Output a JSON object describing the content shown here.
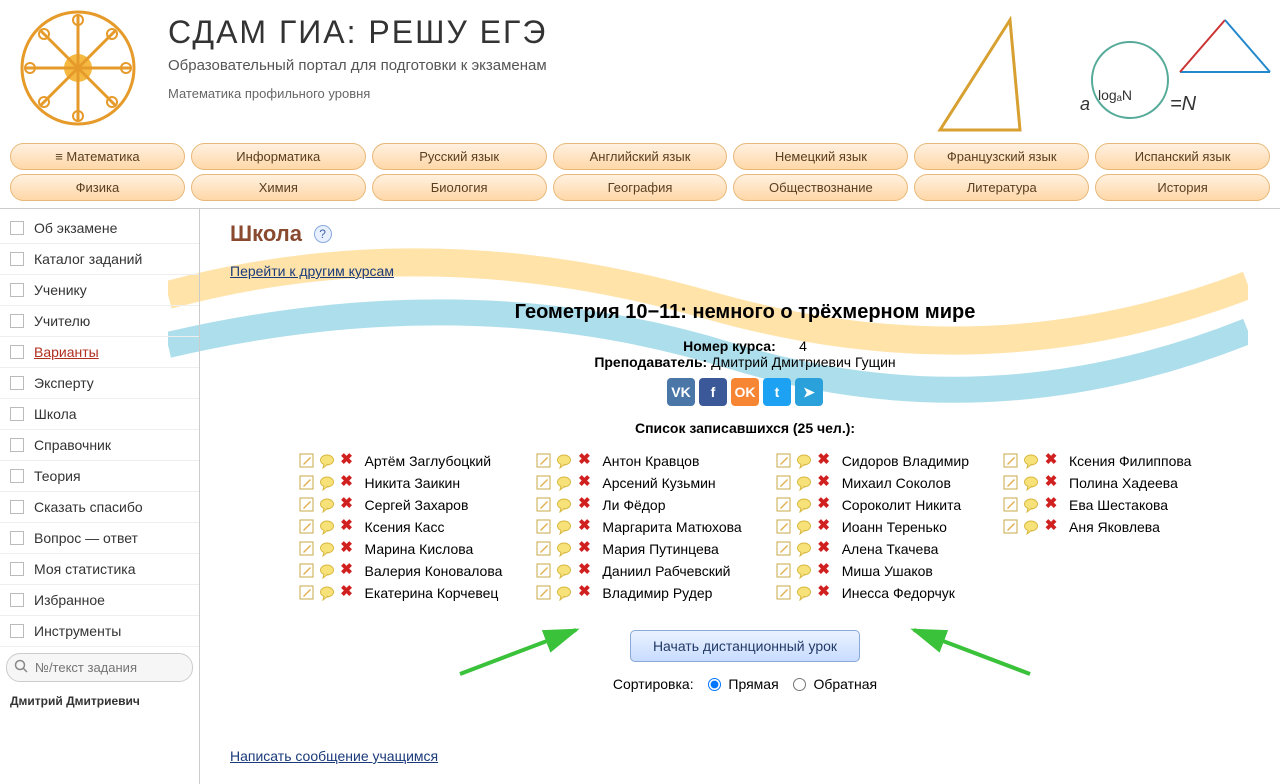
{
  "header": {
    "title": "СДАМ ГИА: РЕШУ ЕГЭ",
    "subtitle": "Образовательный портал для подготовки к экзаменам",
    "subject": "Математика профильного уровня"
  },
  "nav": {
    "row1": [
      "≡ Математика",
      "Информатика",
      "Русский язык",
      "Английский язык",
      "Немецкий язык",
      "Французский язык",
      "Испанский язык"
    ],
    "row2": [
      "Физика",
      "Химия",
      "Биология",
      "География",
      "Обществознание",
      "Литература",
      "История"
    ]
  },
  "sidebar": {
    "items": [
      "Об экзамене",
      "Каталог заданий",
      "Ученику",
      "Учителю",
      "Варианты",
      "Эксперту",
      "Школа",
      "Справочник",
      "Теория",
      "Сказать спасибо",
      "Вопрос — ответ",
      "Моя статистика",
      "Избранное",
      "Инструменты"
    ],
    "active_index": 4,
    "search_placeholder": "№/текст задания",
    "user_trunc": "Дмитрий Дмитриевич"
  },
  "page": {
    "title": "Школа",
    "help": "?",
    "other_courses_link": "Перейти к другим курсам",
    "course_title": "Геометрия 10−11: немного о трёхмерном мире",
    "course_no_label": "Номер курса:",
    "course_no_value": "4",
    "teacher_label": "Преподаватель:",
    "teacher_name": "Дмитрий Дмитриевич Гущин",
    "list_title": "Список записавшихся (25 чел.):",
    "start_button": "Начать дистанционный урок",
    "sort_label": "Сортировка:",
    "sort_direct": "Прямая",
    "sort_reverse": "Обратная",
    "write_msg": "Написать сообщение учащимся"
  },
  "social": [
    {
      "label": "VK",
      "color": "#4a76a8"
    },
    {
      "label": "f",
      "color": "#3b5998"
    },
    {
      "label": "OK",
      "color": "#f68634"
    },
    {
      "label": "t",
      "color": "#1da1f2"
    },
    {
      "label": "➤",
      "color": "#2aa1da"
    }
  ],
  "students": {
    "columns": [
      [
        "Артём Заглубоцкий",
        "Никита Заикин",
        "Сергей Захаров",
        "Ксения Касс",
        "Марина Кислова",
        "Валерия Коновалова",
        "Екатерина Корчевец"
      ],
      [
        "Антон Кравцов",
        "Арсений Кузьмин",
        "Ли Фёдор",
        "Маргарита Матюхова",
        "Мария Путинцева",
        "Даниил Рабчевский",
        "Владимир Рудер"
      ],
      [
        "Сидоров Владимир",
        "Михаил Соколов",
        "Сороколит Никита",
        "Иоанн Теренько",
        "Алена Ткачева",
        "Миша Ушаков",
        "Инесса Федорчук"
      ],
      [
        "Ксения Филиппова",
        "Полина Хадеева",
        "Ева Шестакова",
        "Аня Яковлева"
      ]
    ]
  },
  "colors": {
    "nav_bg_top": "#fff1e0",
    "nav_bg_bottom": "#ffd8a8",
    "nav_border": "#e8b878",
    "page_title": "#8a4a30",
    "link": "#1a3a7a",
    "btn_top": "#eaf2ff",
    "btn_bottom": "#c8dcff",
    "btn_border": "#8aa8d8",
    "del_icon": "#d02020",
    "arrow": "#3ac23a"
  }
}
